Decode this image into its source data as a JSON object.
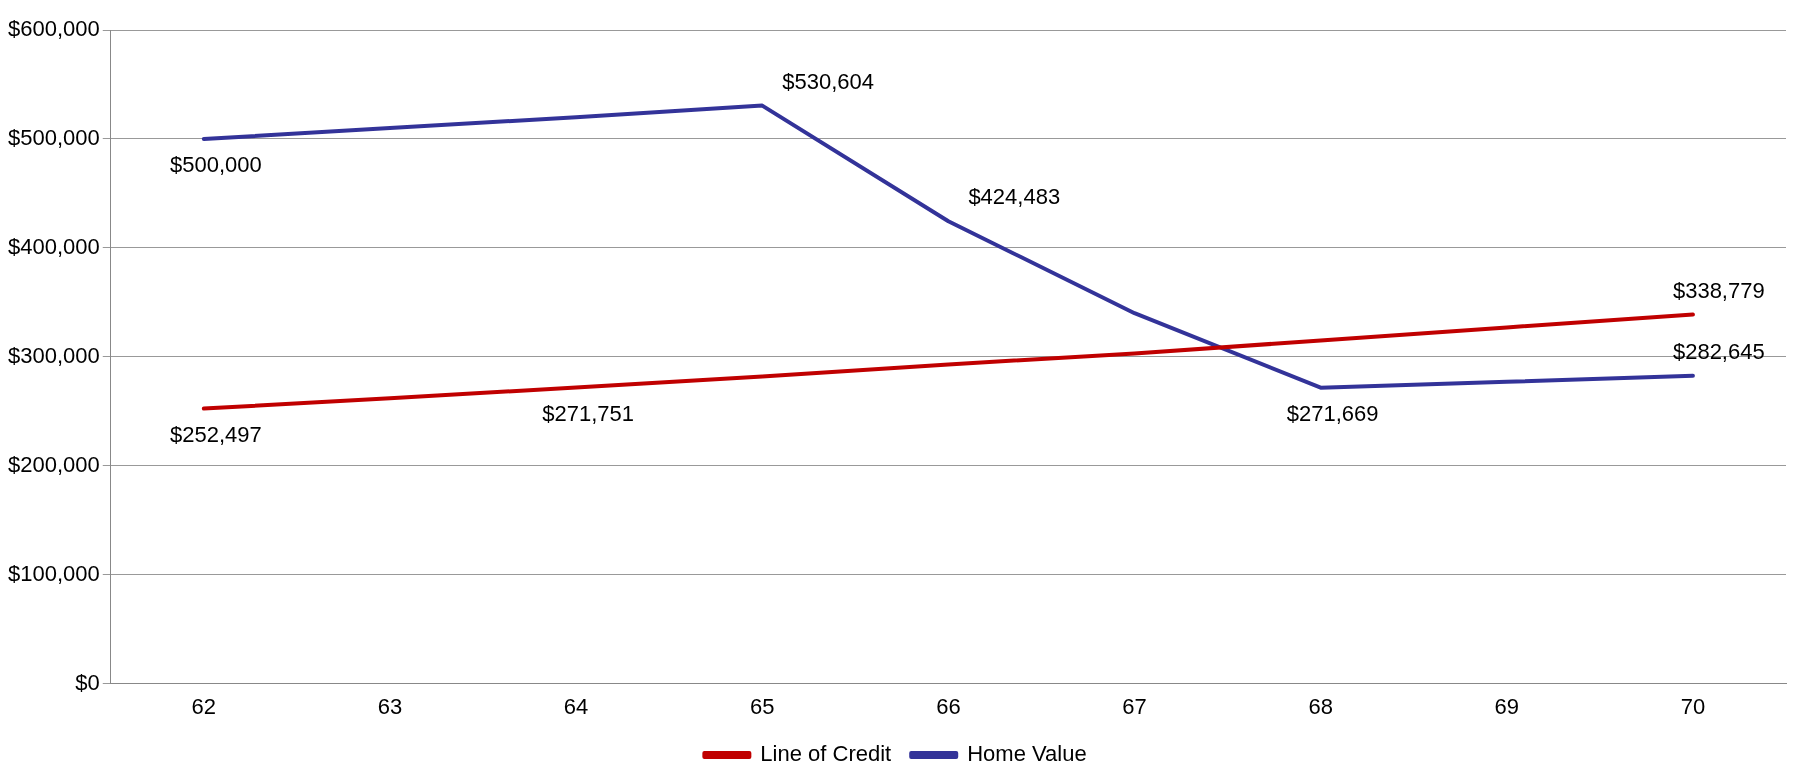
{
  "chart_data": {
    "type": "line",
    "categories": [
      "62",
      "63",
      "64",
      "65",
      "66",
      "67",
      "68",
      "69",
      "70"
    ],
    "series": [
      {
        "name": "Line of Credit",
        "color": "#c00000",
        "values": [
          252497,
          262000,
          271751,
          282000,
          293000,
          303000,
          315000,
          327000,
          338779
        ],
        "value_labels": [
          "$252,497",
          null,
          "$271,751",
          null,
          null,
          null,
          null,
          null,
          "$338,779"
        ]
      },
      {
        "name": "Home Value",
        "color": "#333399",
        "values": [
          500000,
          510000,
          520000,
          530604,
          424483,
          340000,
          271669,
          277000,
          282645
        ],
        "value_labels": [
          "$500,000",
          null,
          null,
          "$530,604",
          "$424,483",
          null,
          "$271,669",
          null,
          "$282,645"
        ]
      }
    ],
    "ylim": [
      0,
      600000
    ],
    "yticks": [
      {
        "value": 0,
        "label": "$0"
      },
      {
        "value": 100000,
        "label": "$100,000"
      },
      {
        "value": 200000,
        "label": "$200,000"
      },
      {
        "value": 300000,
        "label": "$300,000"
      },
      {
        "value": 400000,
        "label": "$400,000"
      },
      {
        "value": 500000,
        "label": "$500,000"
      },
      {
        "value": 600000,
        "label": "$600,000"
      }
    ],
    "grid": "y",
    "legend": "bottom",
    "marker": "none",
    "line_style": "solid"
  }
}
